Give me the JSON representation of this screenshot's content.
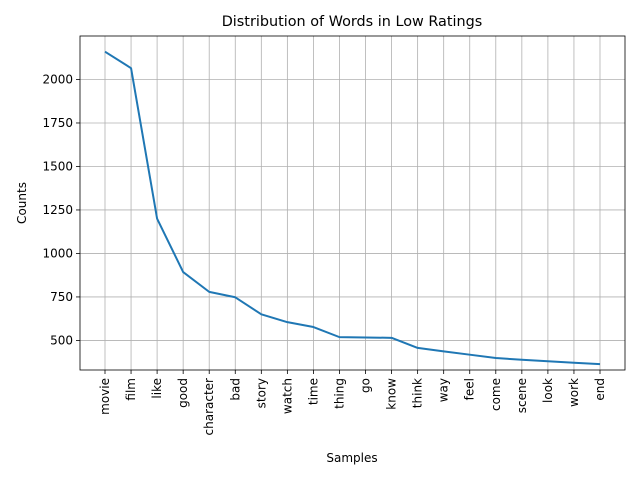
{
  "chart_data": {
    "type": "line",
    "title": "Distribution of Words in Low Ratings",
    "xlabel": "Samples",
    "ylabel": "Counts",
    "grid": true,
    "ylim": [
      330,
      2250
    ],
    "yticks": [
      500,
      750,
      1000,
      1250,
      1500,
      1750,
      2000
    ],
    "ytick_labels": [
      "500",
      "750",
      "1000",
      "1250",
      "1500",
      "1750",
      "2000"
    ],
    "line_color": "#1f77b4",
    "categories": [
      "movie",
      "film",
      "like",
      "good",
      "character",
      "bad",
      "story",
      "watch",
      "time",
      "thing",
      "go",
      "know",
      "think",
      "way",
      "feel",
      "come",
      "scene",
      "look",
      "work",
      "end"
    ],
    "values": [
      2160,
      2065,
      1200,
      893,
      779,
      748,
      650,
      605,
      577,
      519,
      517,
      515,
      457,
      437,
      418,
      399,
      389,
      380,
      372,
      364
    ]
  }
}
